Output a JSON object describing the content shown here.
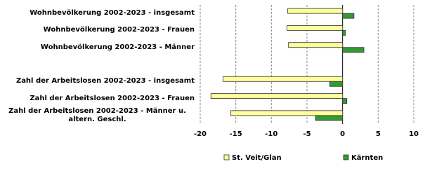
{
  "chart_data": {
    "type": "bar",
    "orientation": "horizontal",
    "categories": [
      "Wohnbevölkerung 2002-2023 - insgesamt",
      "Wohnbevölkerung 2002-2023 - Frauen",
      "Wohnbevölkerung 2002-2023 - Männer",
      null,
      "Zahl der Arbeitslosen 2002-2023 - insgesamt",
      "Zahl der Arbeitslosen 2002-2023 - Frauen",
      "Zahl der Arbeitslosen 2002-2023 - Männer u. altern. Geschl."
    ],
    "series": [
      {
        "name": "St. Veit/Glan",
        "color": "#ffff99",
        "values": [
          -7.7,
          -7.8,
          -7.6,
          null,
          -16.8,
          -18.5,
          -15.7
        ]
      },
      {
        "name": "Kärnten",
        "color": "#339933",
        "values": [
          1.6,
          0.4,
          3.0,
          null,
          -1.8,
          0.6,
          -3.8
        ]
      }
    ],
    "xlim": [
      -20,
      10
    ],
    "xticks": [
      -20,
      -15,
      -10,
      -5,
      0,
      5,
      10
    ],
    "grid": true,
    "legend": "bottom"
  }
}
